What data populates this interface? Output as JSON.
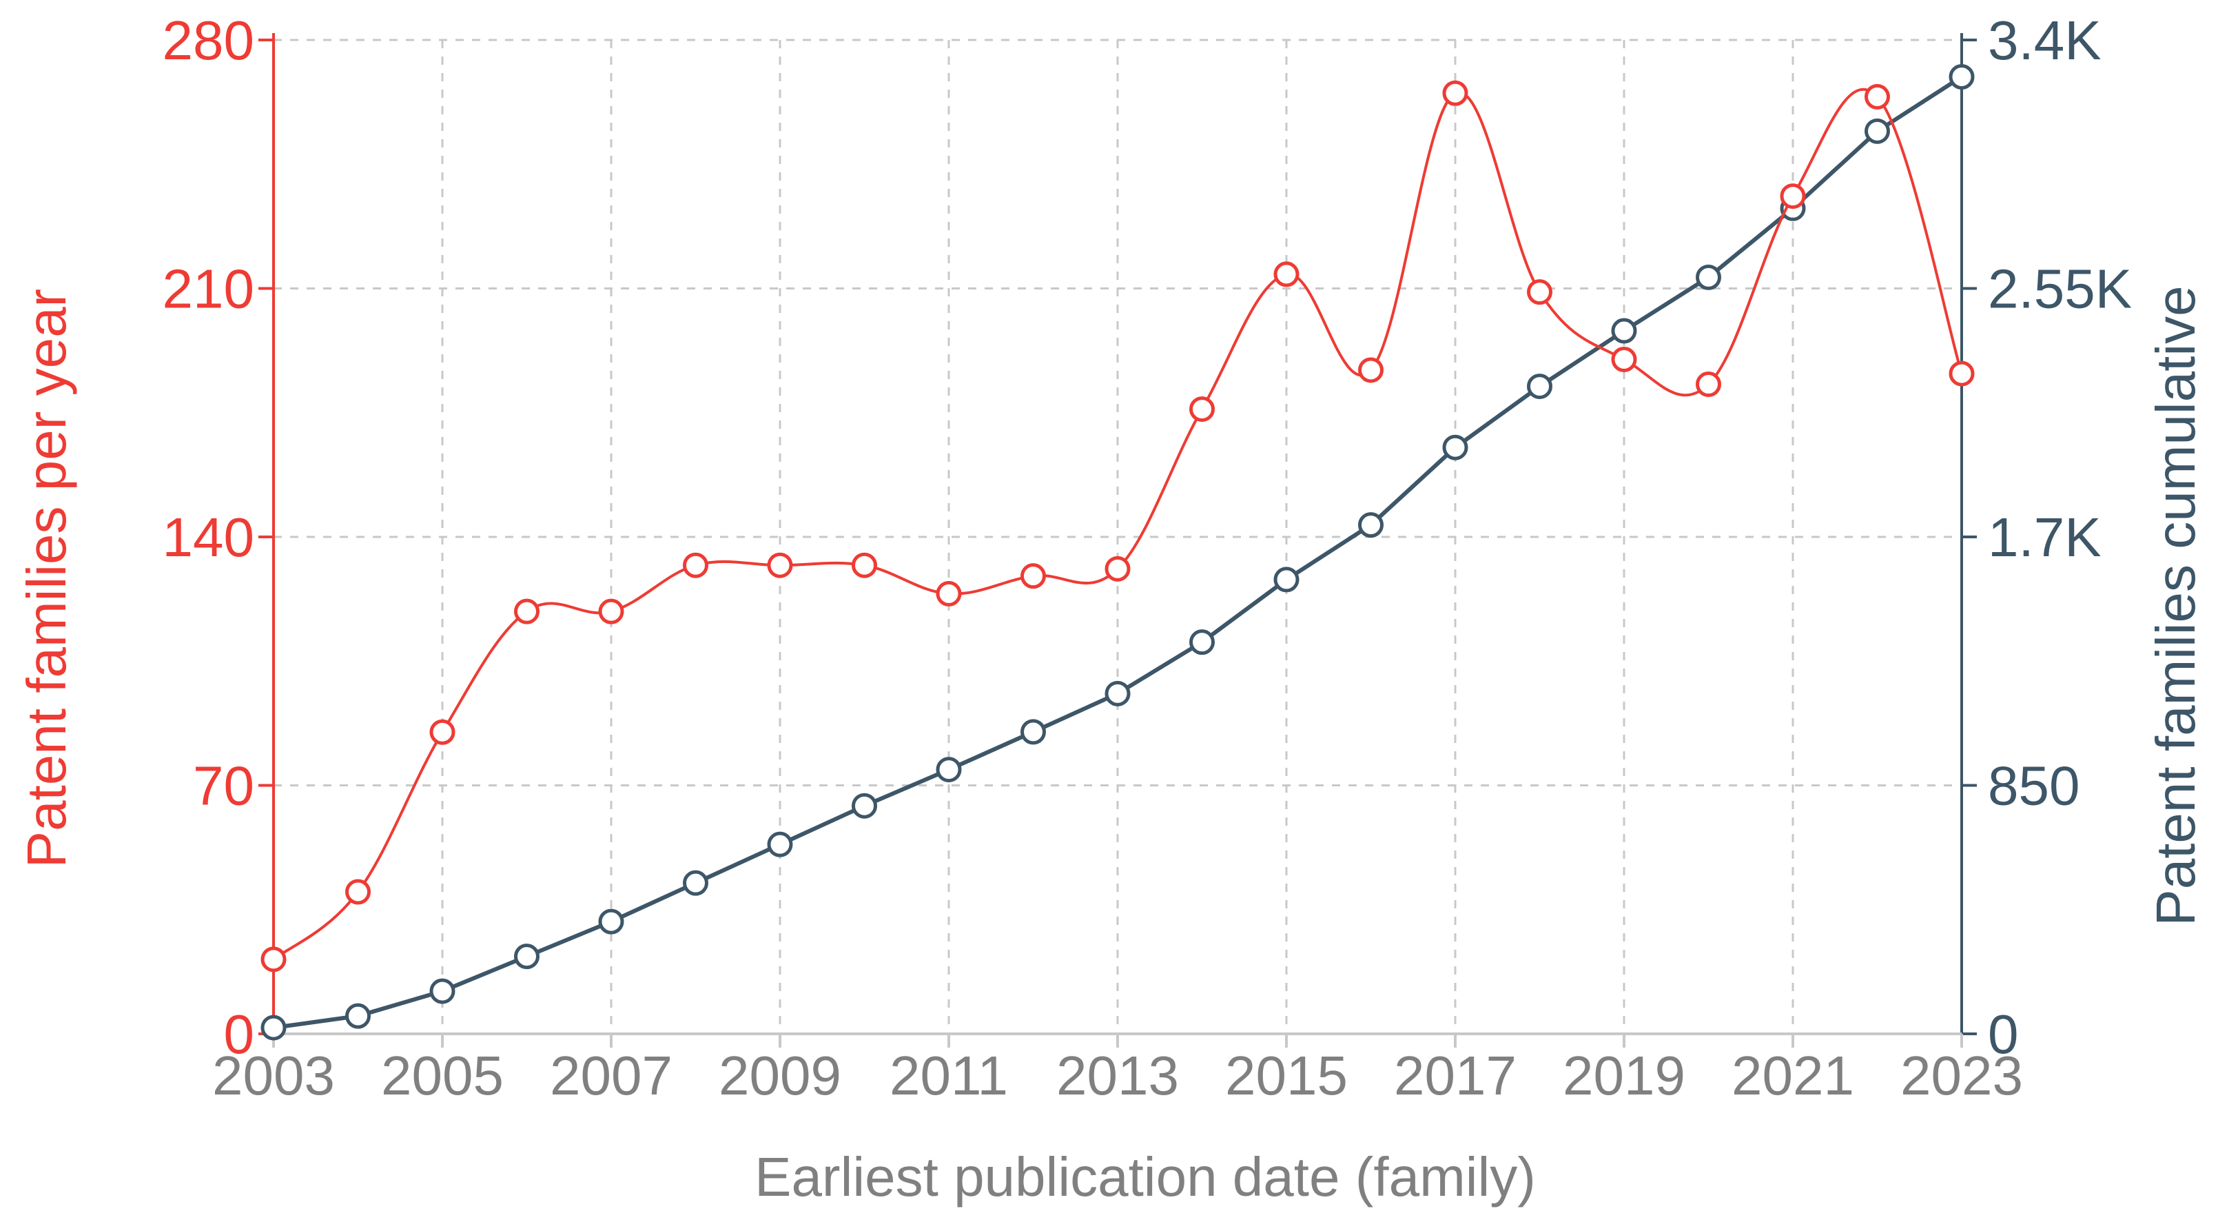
{
  "chart_data": {
    "type": "line",
    "x": [
      2003,
      2004,
      2005,
      2006,
      2007,
      2008,
      2009,
      2010,
      2011,
      2012,
      2013,
      2014,
      2015,
      2016,
      2017,
      2018,
      2019,
      2020,
      2021,
      2022,
      2023
    ],
    "series": [
      {
        "axis": "left",
        "color": "#ee3b34",
        "values": [
          21,
          40,
          85,
          119,
          119,
          132,
          132,
          132,
          124,
          129,
          131,
          176,
          214,
          187,
          265,
          209,
          190,
          183,
          236,
          264,
          186
        ]
      },
      {
        "axis": "right",
        "color": "#3d5668",
        "values": [
          21,
          61,
          146,
          265,
          384,
          516,
          648,
          780,
          904,
          1033,
          1164,
          1340,
          1554,
          1741,
          2006,
          2215,
          2405,
          2588,
          2824,
          3088,
          3274
        ]
      }
    ],
    "xlabel": "Earliest publication date (family)",
    "ylabel_left": "Patent families per year",
    "ylabel_right": "Patent families cumulative",
    "x_ticks": [
      "2003",
      "2005",
      "2007",
      "2009",
      "2011",
      "2013",
      "2015",
      "2017",
      "2019",
      "2021",
      "2023"
    ],
    "y_left_ticks": [
      "0",
      "70",
      "140",
      "210",
      "280"
    ],
    "y_right_ticks": [
      "0",
      "850",
      "1.7K",
      "2.55K",
      "3.4K"
    ],
    "xlim": [
      2003,
      2023
    ],
    "ylim_left": [
      0,
      280
    ],
    "ylim_right": [
      0,
      3400
    ],
    "grid": true,
    "colors": {
      "left_axis": "#ee3b34",
      "right_axis": "#3d5668",
      "grid": "#c8c8c8",
      "x_axis_text": "#808080"
    }
  }
}
